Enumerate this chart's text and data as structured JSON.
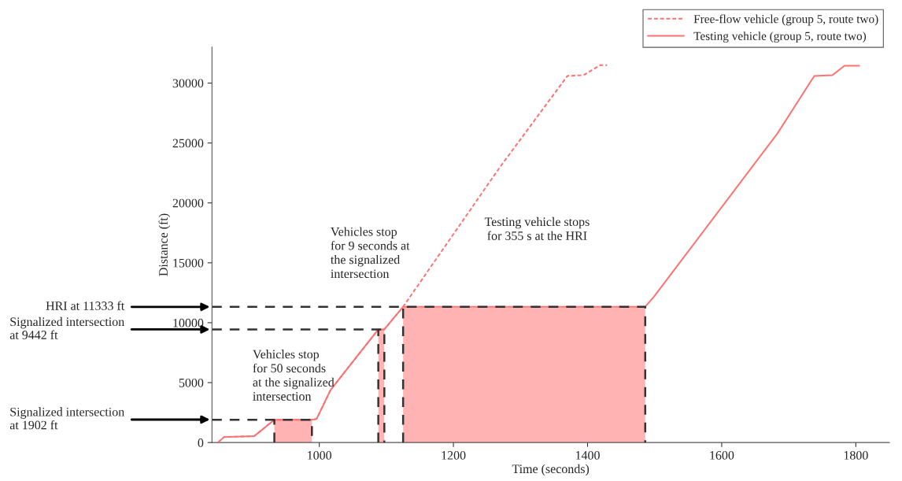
{
  "chart_data": {
    "type": "line",
    "xlabel": "Time (seconds)",
    "ylabel": "Distance (ft)",
    "xlim": [
      840,
      1850
    ],
    "ylim": [
      0,
      33000
    ],
    "xticks": [
      1000,
      1200,
      1400,
      1600,
      1800
    ],
    "yticks": [
      0,
      5000,
      10000,
      15000,
      20000,
      25000,
      30000
    ],
    "grid": false,
    "legend": "top right",
    "series": [
      {
        "name": "Free-flow vehicle (group 5, route two)",
        "line_style": "dashed",
        "color": "#ff7070",
        "x": [
          849,
          858,
          903,
          933,
          989,
          996,
          1017,
          1088,
          1097,
          1125,
          1269,
          1370,
          1394,
          1419,
          1429
        ],
        "values": [
          0,
          460,
          530,
          1902,
          1902,
          1970,
          4400,
          9442,
          9442,
          11333,
          22960,
          30600,
          30660,
          31500,
          31500
        ]
      },
      {
        "name": "Testing vehicle (group 5, route two)",
        "line_style": "solid",
        "color": "#ff7070",
        "x": [
          849,
          858,
          903,
          933,
          989,
          996,
          1017,
          1088,
          1097,
          1125,
          1486,
          1499,
          1683,
          1738,
          1765,
          1783,
          1805
        ],
        "values": [
          0,
          460,
          530,
          1902,
          1902,
          1970,
          4400,
          9442,
          9442,
          11333,
          11333,
          12170,
          25790,
          30600,
          30660,
          31450,
          31450
        ]
      },
      {
        "type": "area",
        "color": "#ffb3b3",
        "x": [
          933,
          989
        ],
        "values": [
          1902,
          1902
        ]
      },
      {
        "type": "area",
        "color": "#ffb3b3",
        "x": [
          1088,
          1097
        ],
        "values": [
          9442,
          9442
        ]
      },
      {
        "type": "area",
        "color": "#ffb3b3",
        "x": [
          1125,
          1486
        ],
        "values": [
          11333,
          11333
        ]
      },
      {
        "line_style": "dashed",
        "color": "#333333",
        "x": [
          840,
          989,
          989
        ],
        "values": [
          1902,
          1902,
          0
        ]
      },
      {
        "line_style": "dashed",
        "color": "#333333",
        "x": [
          933,
          933
        ],
        "values": [
          0,
          1902
        ]
      },
      {
        "line_style": "dashed",
        "color": "#333333",
        "x": [
          840,
          1097,
          1097
        ],
        "values": [
          9442,
          9442,
          0
        ]
      },
      {
        "line_style": "dashed",
        "color": "#333333",
        "x": [
          1088,
          1088
        ],
        "values": [
          0,
          9442
        ]
      },
      {
        "line_style": "dashed",
        "color": "#333333",
        "x": [
          840,
          1486,
          1486
        ],
        "values": [
          11333,
          11333,
          0
        ]
      },
      {
        "line_style": "dashed",
        "color": "#333333",
        "x": [
          1125,
          1125
        ],
        "values": [
          0,
          11333
        ]
      }
    ],
    "annotations": [
      "HRI at 11333 ft",
      "Signalized intersection\nat 9442 ft",
      "Signalized intersection\nat 1902 ft",
      "Vehicles stop\nfor 50 seconds\nat the signalized\nintersection",
      "Vehicles stop\nfor 9 seconds at\nthe signalized\nintersection",
      "Testing vehicle stops\nfor 355 s at the HRI"
    ]
  }
}
